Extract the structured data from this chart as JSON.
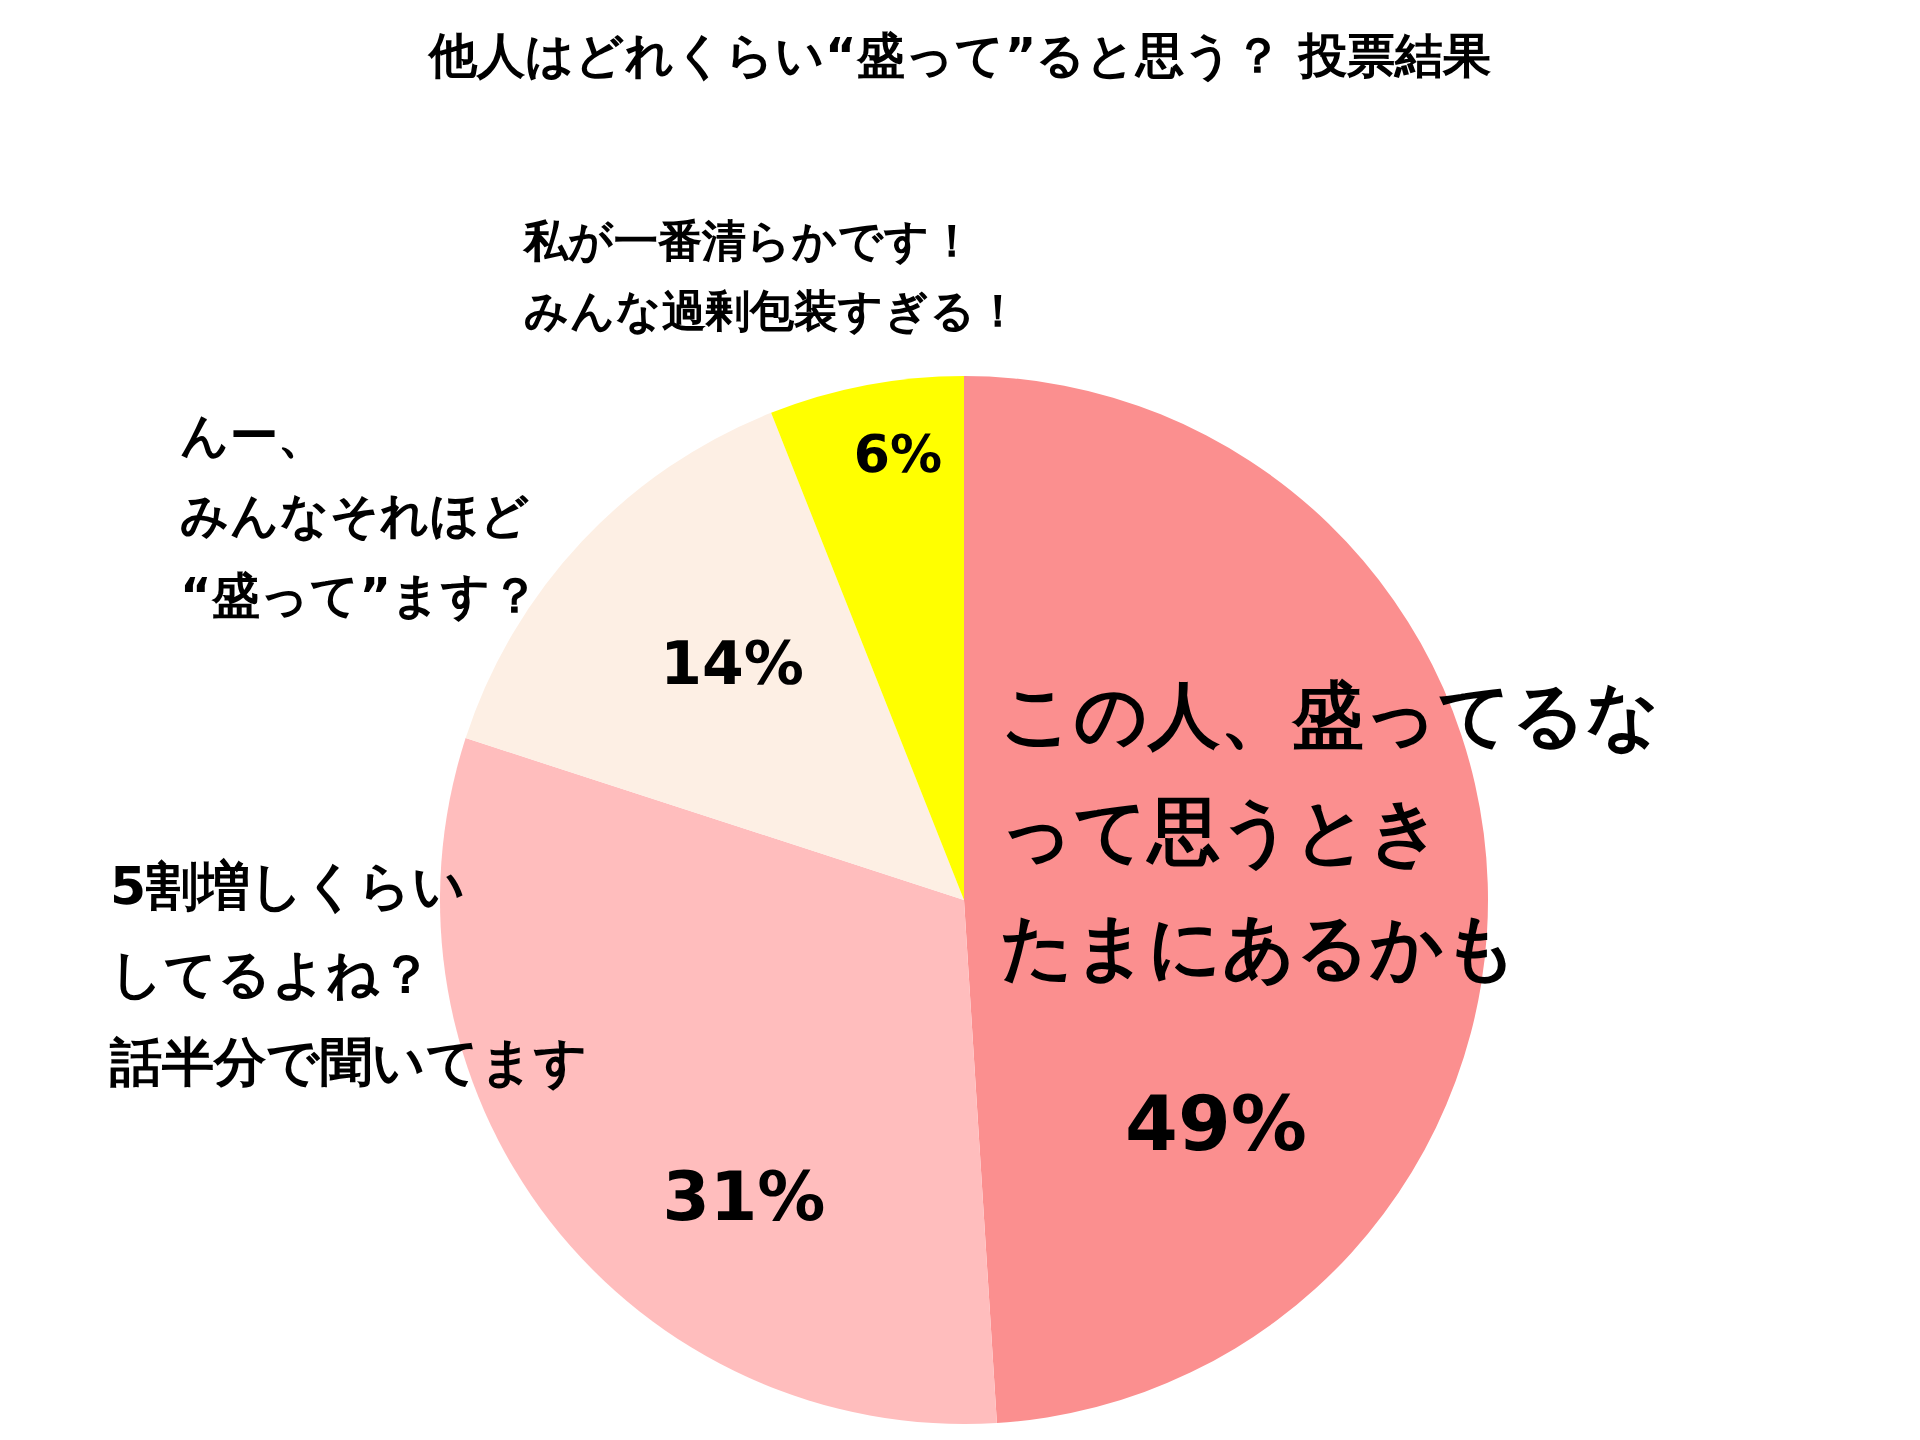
{
  "chart_data": {
    "type": "pie",
    "title": "他人はどれくらい“盛って”ると思う？ 投票結果",
    "categories": [
      "この人、盛ってるなって思うときたまにあるかも",
      "5割増しくらいしてるよね？話半分で聞いてます",
      "んー、みんなそれほど“盛って”ます？",
      "私が一番清らかです！みんな過剰包装すぎる！"
    ],
    "values": [
      49,
      31,
      14,
      6
    ],
    "value_labels": [
      "49%",
      "31%",
      "14%",
      "6%"
    ],
    "colors": [
      "#fb8f8f",
      "#ffbdbd",
      "#fdefe4",
      "#ffff00"
    ]
  }
}
